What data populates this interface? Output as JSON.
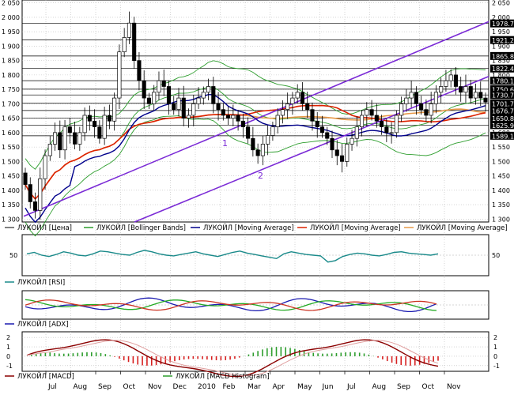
{
  "chart_data": {
    "type": "line",
    "instrument": "ЛУКОЙЛ",
    "panels": [
      {
        "id": "price",
        "ylim": [
          1290,
          2060
        ],
        "y_ticks": [
          "1 300",
          "1 350",
          "1 400",
          "1 450",
          "1 500",
          "1 550",
          "1 600",
          "1 650",
          "1 700",
          "1 750",
          "1 800",
          "1 850",
          "1 900",
          "1 950",
          "2 000",
          "2 050"
        ],
        "price_level_labels": [
          {
            "value": 1978.7,
            "label": "1978.7"
          },
          {
            "value": 1921.2,
            "label": "1921.2"
          },
          {
            "value": 1865.8,
            "label": "1865.8"
          },
          {
            "value": 1822.4,
            "label": "1822.4"
          },
          {
            "value": 1780.1,
            "label": "1780.1"
          },
          {
            "value": 1750.6,
            "label": "1750.6"
          },
          {
            "value": 1730.7,
            "label": "1730.7"
          },
          {
            "value": 1701.7,
            "label": "1701.7"
          },
          {
            "value": 1676.7,
            "label": "1676.7"
          },
          {
            "value": 1650.8,
            "label": "1650.8"
          },
          {
            "value": 1625.9,
            "label": "1625.9"
          },
          {
            "value": 1589.1,
            "label": "1589.1"
          }
        ],
        "candles_close": [
          1420,
          1360,
          1330,
          1440,
          1520,
          1560,
          1600,
          1540,
          1620,
          1600,
          1560,
          1600,
          1660,
          1640,
          1620,
          1580,
          1660,
          1640,
          1720,
          1880,
          1930,
          1980,
          1850,
          1780,
          1720,
          1700,
          1740,
          1780,
          1760,
          1700,
          1680,
          1720,
          1650,
          1660,
          1700,
          1720,
          1740,
          1760,
          1700,
          1680,
          1660,
          1650,
          1660,
          1640,
          1620,
          1580,
          1540,
          1520,
          1560,
          1590,
          1620,
          1660,
          1680,
          1700,
          1720,
          1740,
          1700,
          1680,
          1640,
          1620,
          1600,
          1580,
          1540,
          1520,
          1500,
          1560,
          1580,
          1620,
          1660,
          1680,
          1660,
          1640,
          1620,
          1600,
          1600,
          1660,
          1700,
          1720,
          1740,
          1700,
          1680,
          1660,
          1700,
          1740,
          1760,
          1780,
          1800,
          1760,
          1740,
          1760,
          1720,
          1740,
          1720,
          1706
        ],
        "annotations": [
          "1",
          "2"
        ],
        "legend": [
          {
            "name": "ЛУКОЙЛ [Цена]",
            "color": "#555555"
          },
          {
            "name": "ЛУКОЙЛ [Bollinger Bands]",
            "color": "#2e9e2e"
          },
          {
            "name": "ЛУКОЙЛ [Moving Average]",
            "color": "#00008b"
          },
          {
            "name": "ЛУКОЙЛ [Moving Average]",
            "color": "#dd2200"
          },
          {
            "name": "ЛУКОЙЛ [Moving Average]",
            "color": "#e89a4a"
          }
        ]
      },
      {
        "id": "rsi",
        "y_ticks": [
          "50"
        ],
        "legend": [
          {
            "name": "ЛУКОЙЛ [RSI]",
            "color": "#1a8a8a"
          }
        ],
        "values": [
          52,
          54,
          50,
          48,
          51,
          55,
          53,
          50,
          49,
          52,
          56,
          55,
          53,
          51,
          50,
          54,
          57,
          55,
          52,
          50,
          49,
          51,
          53,
          55,
          52,
          50,
          48,
          51,
          54,
          56,
          53,
          51,
          49,
          47,
          45,
          52,
          55,
          53,
          51,
          50,
          49,
          40,
          42,
          48,
          51,
          53,
          52,
          50,
          49,
          51,
          54,
          55,
          53,
          52,
          51,
          50,
          52
        ]
      },
      {
        "id": "adx",
        "legend": [
          {
            "name": "ЛУКОЙЛ [ADX]",
            "color": "#1b1bb0"
          }
        ]
      },
      {
        "id": "macd",
        "y_ticks": [
          "2",
          "1",
          "0",
          "-1"
        ],
        "legend": [
          {
            "name": "ЛУКОЙЛ [MACD]",
            "color": "#8b0000"
          },
          {
            "name": "ЛУКОЙЛ [MACD Histogram]",
            "color": "#2e9e2e"
          }
        ]
      }
    ],
    "x_tick_labels": [
      "Jul",
      "Aug",
      "Sep",
      "Oct",
      "Nov",
      "Dec",
      "2010",
      "Feb",
      "Mar",
      "Apr",
      "May",
      "Jun",
      "Jul",
      "Aug",
      "Sep",
      "Oct",
      "Nov"
    ]
  },
  "colors": {
    "grid": "#000000",
    "bollinger": "#2e9e2e",
    "ma_blue": "#00008b",
    "ma_red": "#dd2200",
    "ma_orange": "#e89a4a",
    "trend": "#7b2bd6",
    "candle": "#000000"
  }
}
